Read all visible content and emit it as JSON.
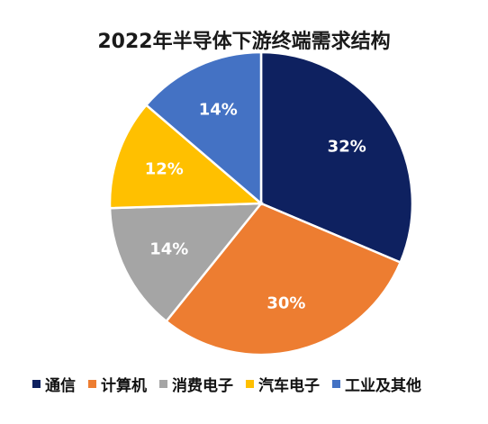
{
  "chart_data": {
    "type": "pie",
    "title": "2022年半导体下游终端需求结构",
    "categories": [
      "通信",
      "计算机",
      "消费电子",
      "汽车电子",
      "工业及其他"
    ],
    "values": [
      32,
      30,
      14,
      12,
      14
    ],
    "labels": [
      "32%",
      "30%",
      "14%",
      "12%",
      "14%"
    ],
    "colors": [
      "#0e2160",
      "#ed7d31",
      "#a5a5a5",
      "#ffc000",
      "#4472c4"
    ],
    "legend_position": "bottom",
    "grid": false
  }
}
